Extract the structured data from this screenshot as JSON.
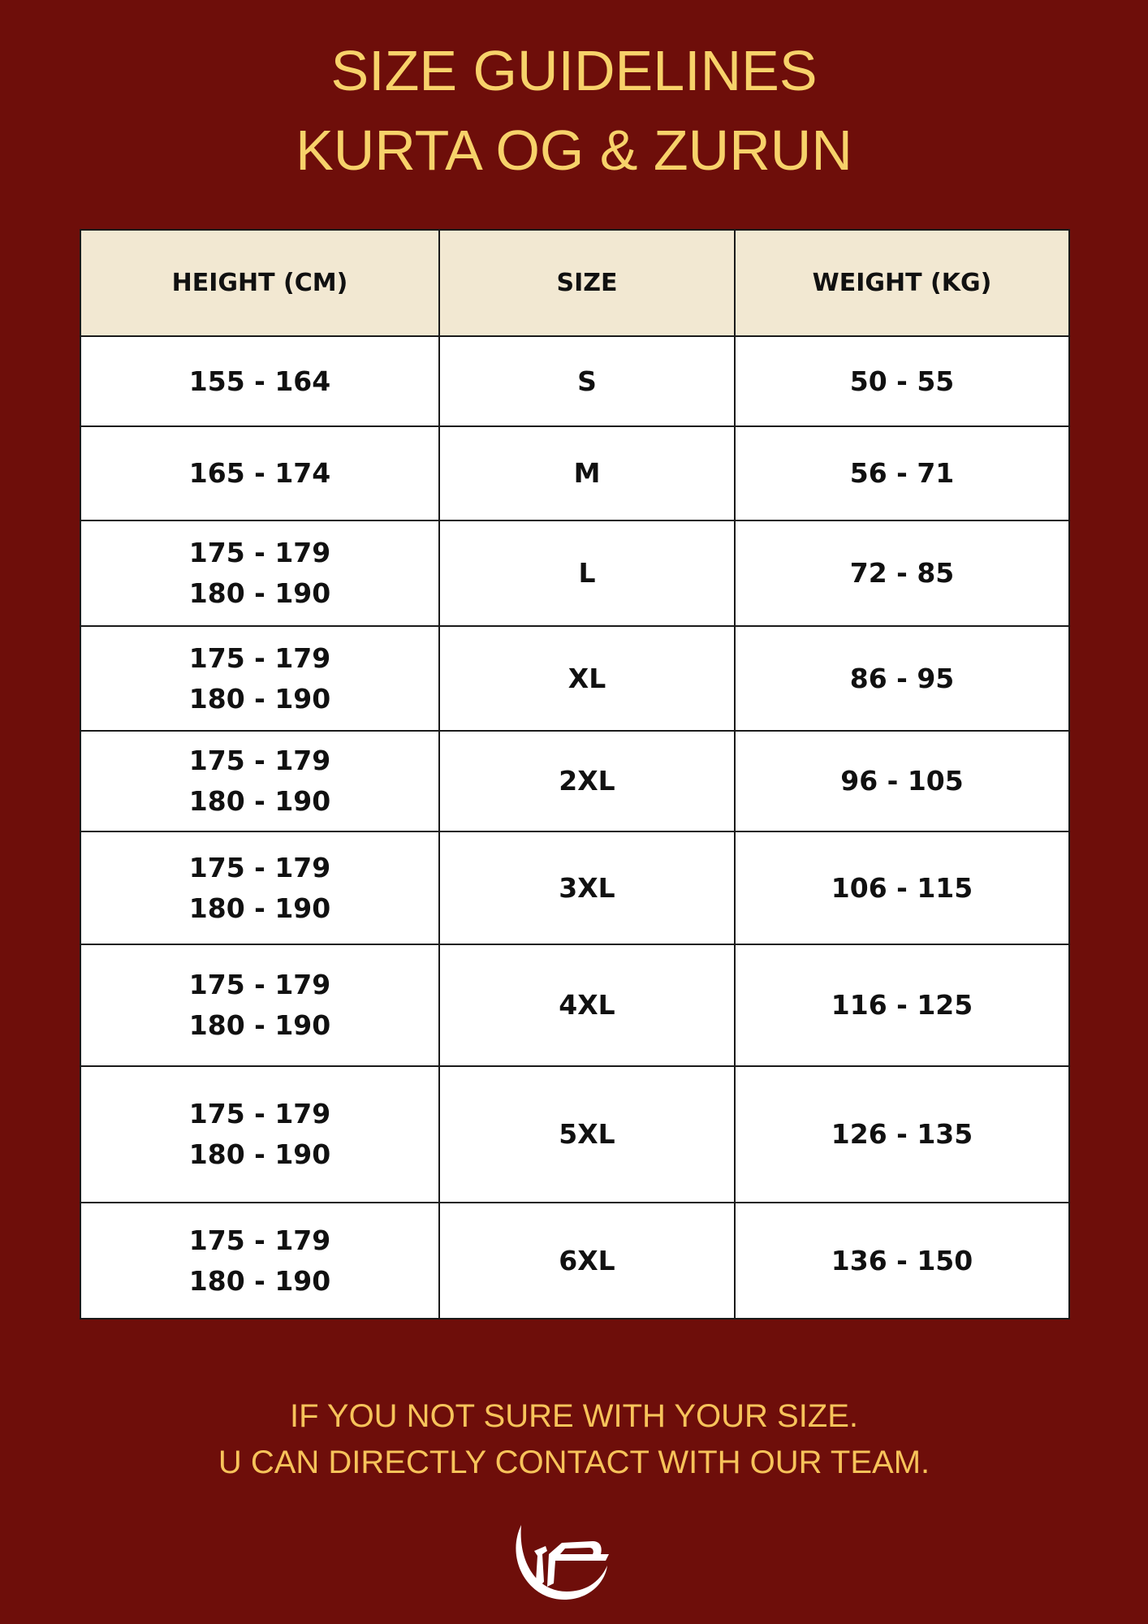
{
  "title": {
    "line1": "SIZE GUIDELINES",
    "line2": "KURTA OG & ZURUN"
  },
  "table": {
    "headers": [
      "HEIGHT (CM)",
      "SIZE",
      "WEIGHT (KG)"
    ],
    "rows": [
      {
        "height": [
          "155 - 164"
        ],
        "size": "S",
        "weight": "50 - 55"
      },
      {
        "height": [
          "165 - 174"
        ],
        "size": "M",
        "weight": "56 - 71"
      },
      {
        "height": [
          "175 - 179",
          "180 - 190"
        ],
        "size": "L",
        "weight": "72 - 85"
      },
      {
        "height": [
          "175 - 179",
          "180 - 190"
        ],
        "size": "XL",
        "weight": "86 - 95"
      },
      {
        "height": [
          "175 - 179",
          "180 - 190"
        ],
        "size": "2XL",
        "weight": "96 - 105"
      },
      {
        "height": [
          "175 - 179",
          "180 - 190"
        ],
        "size": "3XL",
        "weight": "106 - 115"
      },
      {
        "height": [
          "175 - 179",
          "180 - 190"
        ],
        "size": "4XL",
        "weight": "116 - 125"
      },
      {
        "height": [
          "175 - 179",
          "180 - 190"
        ],
        "size": "5XL",
        "weight": "126 - 135"
      },
      {
        "height": [
          "175 - 179",
          "180 - 190"
        ],
        "size": "6XL",
        "weight": "136 - 150"
      }
    ]
  },
  "footer": {
    "line1": "IF YOU NOT SURE WITH YOUR SIZE.",
    "line2": "U CAN DIRECTLY CONTACT WITH OUR TEAM."
  },
  "logo": {
    "icon": "crescent-monogram-logo"
  },
  "colors": {
    "background": "#6e0e0a",
    "title": "#f7d26a",
    "header_bg": "#f2e8d2",
    "footer_text": "#f7c35a"
  }
}
